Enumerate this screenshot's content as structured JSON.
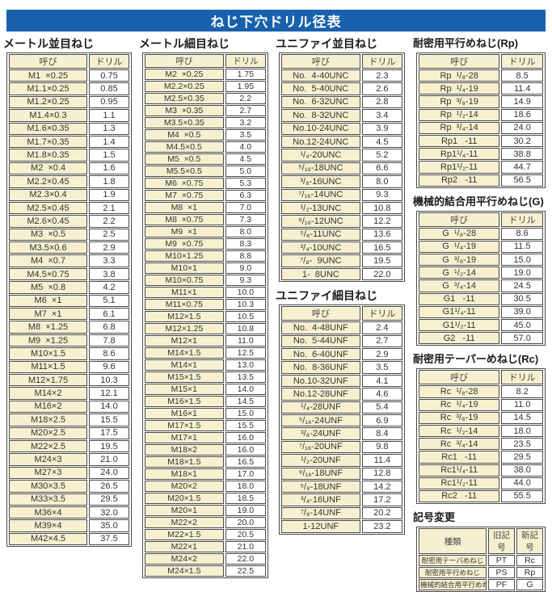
{
  "title": "ねじ下穴ドリル径表",
  "col_headers": {
    "name": "呼び",
    "drill": "ドリル"
  },
  "sections": {
    "metric_coarse": {
      "title": "メートル並目ねじ",
      "rows": [
        [
          "M1  ×0.25",
          "0.75"
        ],
        [
          "M1.1×0.25",
          "0.85"
        ],
        [
          "M1.2×0.25",
          "0.95"
        ],
        [
          "M1.4×0.3",
          "1.1"
        ],
        [
          "M1.6×0.35",
          "1.3"
        ],
        [
          "M1.7×0.35",
          "1.4"
        ],
        [
          "M1.8×0.35",
          "1.5"
        ],
        [
          "M2  ×0.4",
          "1.6"
        ],
        [
          "M2.2×0.45",
          "1.8"
        ],
        [
          "M2.3×0.4",
          "1.9"
        ],
        [
          "M2.5×0.45",
          "2.1"
        ],
        [
          "M2.6×0.45",
          "2.2"
        ],
        [
          "M3  ×0.5",
          "2.5"
        ],
        [
          "M3.5×0.6",
          "2.9"
        ],
        [
          "M4  ×0.7",
          "3.3"
        ],
        [
          "M4.5×0.75",
          "3.8"
        ],
        [
          "M5  ×0.8",
          "4.2"
        ],
        [
          "M6  ×1",
          "5.1"
        ],
        [
          "M7  ×1",
          "6.1"
        ],
        [
          "M8  ×1.25",
          "6.8"
        ],
        [
          "M9  ×1.25",
          "7.8"
        ],
        [
          "M10×1.5",
          "8.6"
        ],
        [
          "M11×1.5",
          "9.6"
        ],
        [
          "M12×1.75",
          "10.3"
        ],
        [
          "M14×2",
          "12.1"
        ],
        [
          "M16×2",
          "14.0"
        ],
        [
          "M18×2.5",
          "15.5"
        ],
        [
          "M20×2.5",
          "17.5"
        ],
        [
          "M22×2.5",
          "19.5"
        ],
        [
          "M24×3",
          "21.0"
        ],
        [
          "M27×3",
          "24.0"
        ],
        [
          "M30×3.5",
          "26.5"
        ],
        [
          "M33×3.5",
          "29.5"
        ],
        [
          "M36×4",
          "32.0"
        ],
        [
          "M39×4",
          "35.0"
        ],
        [
          "M42×4.5",
          "37.5"
        ]
      ]
    },
    "metric_fine": {
      "title": "メートル細目ねじ",
      "rows": [
        [
          "M2  ×0.25",
          "1.75"
        ],
        [
          "M2.2×0.25",
          "1.95"
        ],
        [
          "M2.5×0.35",
          "2.2"
        ],
        [
          "M3  ×0.35",
          "2.7"
        ],
        [
          "M3.5×0.35",
          "3.2"
        ],
        [
          "M4  ×0.5",
          "3.5"
        ],
        [
          "M4.5×0.5",
          "4.0"
        ],
        [
          "M5  ×0.5",
          "4.5"
        ],
        [
          "M5.5×0.5",
          "5.0"
        ],
        [
          "M6  ×0.75",
          "5.3"
        ],
        [
          "M7  ×0.75",
          "6.3"
        ],
        [
          "M8  ×1",
          "7.0"
        ],
        [
          "M8  ×0.75",
          "7.3"
        ],
        [
          "M9  ×1",
          "8.0"
        ],
        [
          "M9  ×0.75",
          "8.3"
        ],
        [
          "M10×1.25",
          "8.8"
        ],
        [
          "M10×1",
          "9.0"
        ],
        [
          "M10×0.75",
          "9.3"
        ],
        [
          "M11×1",
          "10.0"
        ],
        [
          "M11×0.75",
          "10.3"
        ],
        [
          "M12×1.5",
          "10.5"
        ],
        [
          "M12×1.25",
          "10.8"
        ],
        [
          "M12×1",
          "11.0"
        ],
        [
          "M14×1.5",
          "12.5"
        ],
        [
          "M14×1",
          "13.0"
        ],
        [
          "M15×1.5",
          "13.5"
        ],
        [
          "M15×1",
          "14.0"
        ],
        [
          "M16×1.5",
          "14.5"
        ],
        [
          "M16×1",
          "15.0"
        ],
        [
          "M17×1.5",
          "15.5"
        ],
        [
          "M17×1",
          "16.0"
        ],
        [
          "M18×2",
          "16.0"
        ],
        [
          "M18×1.5",
          "16.5"
        ],
        [
          "M18×1",
          "17.0"
        ],
        [
          "M20×2",
          "18.0"
        ],
        [
          "M20×1.5",
          "18.5"
        ],
        [
          "M20×1",
          "19.0"
        ],
        [
          "M22×2",
          "20.0"
        ],
        [
          "M22×1.5",
          "20.5"
        ],
        [
          "M22×1",
          "21.0"
        ],
        [
          "M24×2",
          "22.0"
        ],
        [
          "M24×1.5",
          "22.5"
        ]
      ]
    },
    "unified_coarse": {
      "title": "ユニファイ並目ねじ",
      "rows": [
        [
          "No.  4-40UNC",
          "2.3"
        ],
        [
          "No.  5-40UNC",
          "2.6"
        ],
        [
          "No.  6-32UNC",
          "2.8"
        ],
        [
          "No.  8-32UNC",
          "3.4"
        ],
        [
          "No.10-24UNC",
          "3.9"
        ],
        [
          "No.12-24UNC",
          "4.5"
        ],
        [
          "¹/₄-20UNC",
          "5.2"
        ],
        [
          "⁵/₁₆-18UNC",
          "6.6"
        ],
        [
          "³/₈-16UNC",
          "8.0"
        ],
        [
          "⁷/₁₆-14UNC",
          "9.3"
        ],
        [
          "¹/₂-13UNC",
          "10.8"
        ],
        [
          "⁹/₁₆-12UNC",
          "12.2"
        ],
        [
          "⁵/₈-11UNC",
          "13.6"
        ],
        [
          "³/₄-10UNC",
          "16.5"
        ],
        [
          "⁷/₈-  9UNC",
          "19.5"
        ],
        [
          "1-  8UNC",
          "22.0"
        ]
      ]
    },
    "unified_fine": {
      "title": "ユニファイ細目ねじ",
      "rows": [
        [
          "No.  4-48UNF",
          "2.4"
        ],
        [
          "No.  5-44UNF",
          "2.7"
        ],
        [
          "No.  6-40UNF",
          "2.9"
        ],
        [
          "No.  8-36UNF",
          "3.5"
        ],
        [
          "No.10-32UNF",
          "4.1"
        ],
        [
          "No.12-28UNF",
          "4.6"
        ],
        [
          "¹/₄-28UNF",
          "5.4"
        ],
        [
          "⁵/₁₆-24UNF",
          "6.9"
        ],
        [
          "³/₈-24UNF",
          "8.4"
        ],
        [
          "⁷/₁₆-20UNF",
          "9.8"
        ],
        [
          "¹/₂-20UNF",
          "11.4"
        ],
        [
          "⁹/₁₆-18UNF",
          "12.8"
        ],
        [
          "⁵/₈-18UNF",
          "14.2"
        ],
        [
          "³/₄-16UNF",
          "17.2"
        ],
        [
          "⁷/₈-14UNF",
          "20.2"
        ],
        [
          "1-12UNF",
          "23.2"
        ]
      ]
    },
    "rp": {
      "title": "耐密用平行めねじ(Rp)",
      "rows": [
        [
          "Rp  ¹/₈-28",
          "8.5"
        ],
        [
          "Rp  ¹/₄-19",
          "11.4"
        ],
        [
          "Rp  ³/₈-19",
          "14.9"
        ],
        [
          "Rp  ¹/₂-14",
          "18.6"
        ],
        [
          "Rp  ³/₄-14",
          "24.0"
        ],
        [
          "Rp1   -11",
          "30.2"
        ],
        [
          "Rp1¹/₄-11",
          "38.8"
        ],
        [
          "Rp1¹/₂-11",
          "44.7"
        ],
        [
          "Rp2   -11",
          "56.5"
        ]
      ]
    },
    "g": {
      "title": "機械的結合用平行めねじ(G)",
      "rows": [
        [
          "G  ¹/₈-28",
          "8.6"
        ],
        [
          "G  ¹/₄-19",
          "11.5"
        ],
        [
          "G  ³/₈-19",
          "15.0"
        ],
        [
          "G  ¹/₂-14",
          "19.0"
        ],
        [
          "G  ³/₄-14",
          "24.5"
        ],
        [
          "G1   -11",
          "30.5"
        ],
        [
          "G1¹/₄-11",
          "39.0"
        ],
        [
          "G1¹/₂-11",
          "45.0"
        ],
        [
          "G2   -11",
          "57.0"
        ]
      ]
    },
    "rc": {
      "title": "耐密用テーパーめねじ(Rc)",
      "rows": [
        [
          "Rc  ¹/₈-28",
          "8.2"
        ],
        [
          "Rc  ¹/₄-19",
          "11.0"
        ],
        [
          "Rc  ³/₈-19",
          "14.5"
        ],
        [
          "Rc  ¹/₂-14",
          "18.0"
        ],
        [
          "Rc  ³/₄-14",
          "23.5"
        ],
        [
          "Rc1   -11",
          "29.5"
        ],
        [
          "Rc1¹/₄-11",
          "38.0"
        ],
        [
          "Rc1¹/₂-11",
          "44.0"
        ],
        [
          "Rc2   -11",
          "55.5"
        ]
      ]
    },
    "symbol_change": {
      "title": "記号変更",
      "headers": [
        "種類",
        "旧記号",
        "新記号"
      ],
      "rows": [
        [
          "耐密用テーパめねじ",
          "PT",
          "Rc"
        ],
        [
          "耐密用平行めねじ",
          "PS",
          "Rp"
        ],
        [
          "機械的結合用平行めねじ",
          "PF",
          "G"
        ]
      ]
    }
  },
  "corner_artifact": "--",
  "colors": {
    "title_bar_bg": "#1761ad",
    "cell_beige": "#f6f0d0",
    "border": "#4a4a4a",
    "text": "#333333"
  }
}
